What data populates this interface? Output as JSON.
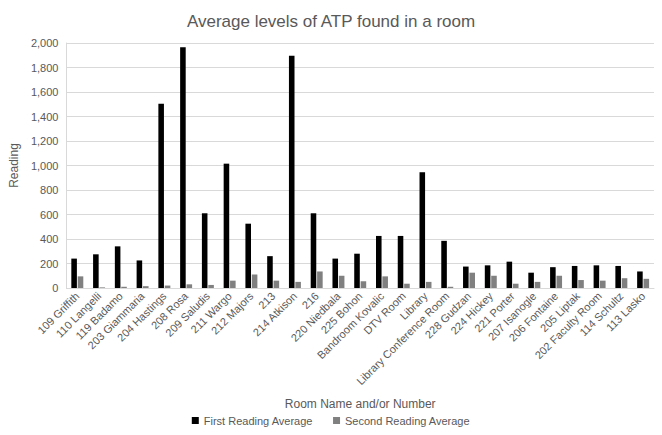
{
  "chart_data": {
    "type": "bar",
    "title": "Average levels of ATP found in a room",
    "x_label": "Room Name and/or Number",
    "y_label": "Reading",
    "categories": [
      "109 Griffith",
      "110 Langelli",
      "119 Badamo",
      "203 Giammaria",
      "204 Hastings",
      "208 Rosa",
      "209 Saludis",
      "211 Wargo",
      "212 Majors",
      "213",
      "214 Atkison",
      "216",
      "220 Niedbala",
      "225 Bohon",
      "Bandroom Kovalic",
      "DTV Room",
      "Library",
      "Library Conference Room",
      "228 Gudzan",
      "224 Hickey",
      "221 Porter",
      "207 Isanogle",
      "206 Fontaine",
      "205 Liptak",
      "202 Faculty Room",
      "114 Schultz",
      "113 Lasko"
    ],
    "series": [
      {
        "name": "First Reading Average",
        "color": "#000000",
        "values": [
          240,
          275,
          340,
          225,
          1505,
          1965,
          610,
          1015,
          525,
          260,
          1895,
          610,
          240,
          280,
          425,
          425,
          945,
          385,
          175,
          185,
          215,
          125,
          170,
          180,
          185,
          180,
          135
        ]
      },
      {
        "name": "Second Reading Average",
        "color": "#808080",
        "values": [
          95,
          5,
          10,
          15,
          20,
          30,
          25,
          60,
          110,
          60,
          50,
          135,
          100,
          55,
          95,
          35,
          50,
          10,
          125,
          100,
          35,
          50,
          100,
          65,
          60,
          80,
          75
        ]
      }
    ],
    "ylim": [
      0,
      2000
    ],
    "yticks": [
      0,
      200,
      400,
      600,
      800,
      1000,
      1200,
      1400,
      1600,
      1800,
      2000
    ],
    "grid": true,
    "legend": "bottom"
  }
}
